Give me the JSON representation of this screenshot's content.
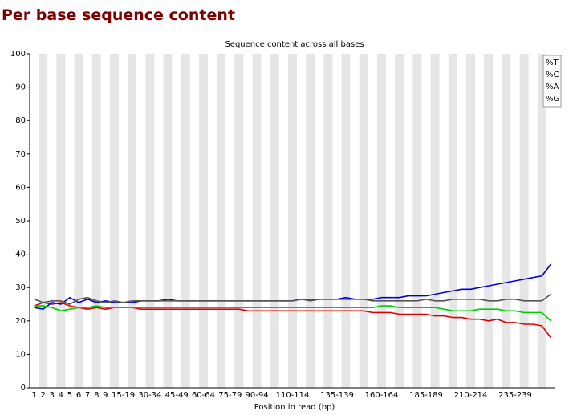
{
  "header": {
    "title": "Per base sequence content"
  },
  "chart_data": {
    "type": "line",
    "title": "Sequence content across all bases",
    "x_label": "Position in read (bp)",
    "categories": [
      "1",
      "2",
      "3",
      "4",
      "5",
      "6",
      "7",
      "8",
      "9",
      null,
      "15-19",
      null,
      null,
      "30-34",
      null,
      null,
      "45-49",
      null,
      null,
      "60-64",
      null,
      null,
      "75-79",
      null,
      null,
      "90-94",
      null,
      null,
      null,
      "110-114",
      null,
      null,
      null,
      null,
      "135-139",
      null,
      null,
      null,
      null,
      "160-164",
      null,
      null,
      null,
      null,
      "185-189",
      null,
      null,
      null,
      null,
      "210-214",
      null,
      null,
      null,
      null,
      "235-239",
      null,
      null,
      null,
      null
    ],
    "series": [
      {
        "name": "%T",
        "color": "#dd0000",
        "values": [
          24.5,
          25.5,
          25,
          25.5,
          24.5,
          24,
          23.5,
          24,
          23.5,
          24,
          24,
          24,
          23.5,
          23.5,
          23.5,
          23.5,
          23.5,
          23.5,
          23.5,
          23.5,
          23.5,
          23.5,
          23.5,
          23.5,
          23,
          23,
          23,
          23,
          23,
          23,
          23,
          23,
          23,
          23,
          23,
          23,
          23,
          23,
          22.5,
          22.5,
          22.5,
          22,
          22,
          22,
          22,
          21.5,
          21.5,
          21,
          21,
          20.5,
          20.5,
          20,
          20.5,
          19.5,
          19.5,
          19,
          19,
          18.5,
          15
        ]
      },
      {
        "name": "%C",
        "color": "#0000dd",
        "values": [
          24,
          23.5,
          25.5,
          25,
          27,
          25.5,
          26.5,
          25.5,
          26,
          25.5,
          25.5,
          25.5,
          26,
          26,
          26,
          26.5,
          26,
          26,
          26,
          26,
          26,
          26,
          26,
          26,
          26,
          26,
          26,
          26,
          26,
          26,
          26.5,
          26.5,
          26.5,
          26.5,
          26.5,
          27,
          26.5,
          26.5,
          26.5,
          27,
          27,
          27,
          27.5,
          27.5,
          27.5,
          28,
          28.5,
          29,
          29.5,
          29.5,
          30,
          30.5,
          31,
          31.5,
          32,
          32.5,
          33,
          33.5,
          37
        ]
      },
      {
        "name": "%A",
        "color": "#00cc00",
        "values": [
          24.5,
          24.5,
          24,
          23,
          23.5,
          24,
          24,
          24.5,
          24,
          24,
          24,
          24,
          24,
          24,
          24,
          24,
          24,
          24,
          24,
          24,
          24,
          24,
          24,
          24,
          24,
          24,
          24,
          24,
          24,
          24,
          24,
          24,
          24,
          24,
          24,
          24,
          24,
          24,
          24,
          24.5,
          24.5,
          24,
          24,
          24,
          24,
          24,
          23.5,
          23,
          23,
          23,
          23.5,
          23.5,
          23.5,
          23,
          23,
          22.5,
          22.5,
          22.5,
          20
        ]
      },
      {
        "name": "%G",
        "color": "#555555",
        "values": [
          26.5,
          25.5,
          26,
          26,
          25,
          26.5,
          27,
          26,
          25.5,
          26,
          25.5,
          26,
          26,
          26,
          26,
          26,
          26,
          26,
          26,
          26,
          26,
          26,
          26,
          26,
          26,
          26,
          26,
          26,
          26,
          26,
          26.5,
          26,
          26.5,
          26.5,
          26.5,
          26.5,
          26.5,
          26.5,
          26,
          26,
          26,
          26,
          26,
          26,
          26.5,
          26,
          26,
          26.5,
          26.5,
          26.5,
          26.5,
          26,
          26,
          26.5,
          26.5,
          26,
          26,
          26,
          28
        ]
      }
    ],
    "ylim": [
      0,
      100
    ],
    "yticks": [
      0,
      10,
      20,
      30,
      40,
      50,
      60,
      70,
      80,
      90,
      100
    ],
    "legend": "top-right",
    "band_colors": [
      "#ffffff",
      "#e6e6e6"
    ]
  }
}
